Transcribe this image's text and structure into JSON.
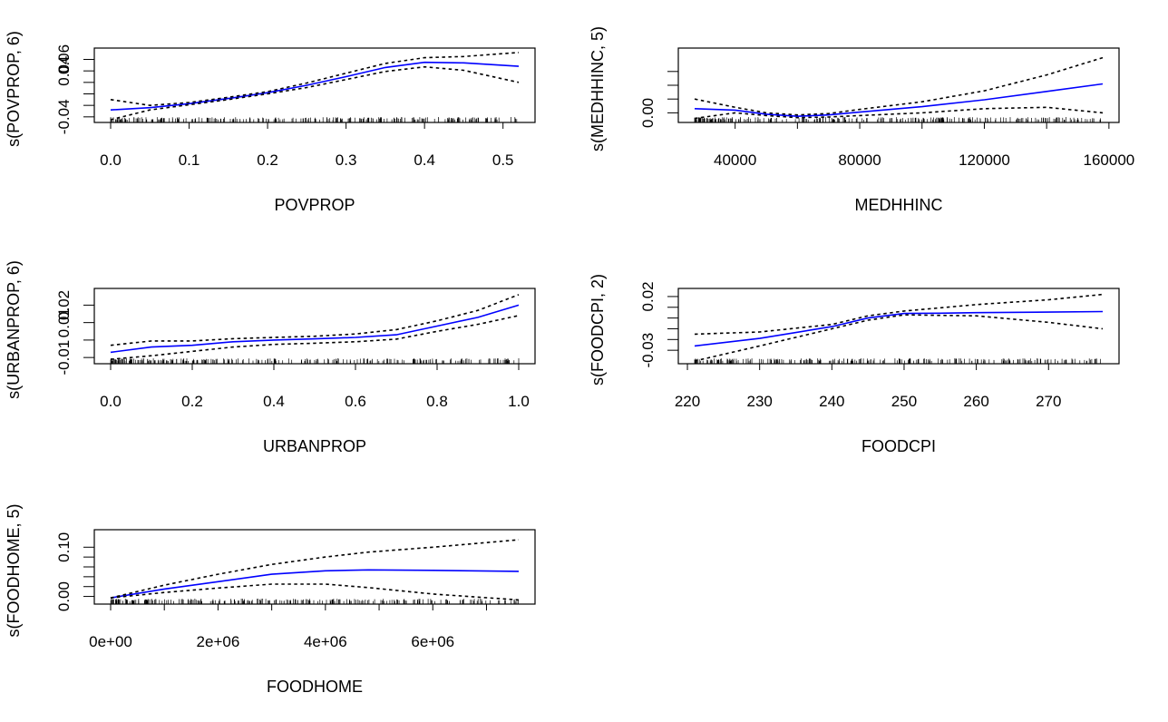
{
  "chart_data": [
    {
      "type": "line",
      "xlabel": "POVPROP",
      "ylabel": "s(POVPROP, 6)",
      "xlim": [
        0,
        0.52
      ],
      "ylim": [
        -0.045,
        0.075
      ],
      "x_ticks": [
        0.0,
        0.1,
        0.2,
        0.3,
        0.4,
        0.5
      ],
      "x_tick_labels": [
        "0.0",
        "0.1",
        "0.2",
        "0.3",
        "0.4",
        "0.5"
      ],
      "y_ticks": [
        -0.04,
        -0.02,
        0.0,
        0.02,
        0.04,
        0.06
      ],
      "y_tick_labels": [
        "-0.04",
        "",
        "",
        "",
        "0.04",
        "0.06"
      ],
      "rug": true,
      "series": [
        {
          "role": "fit",
          "color": "#0000ff",
          "dash": false,
          "x": [
            0,
            0.05,
            0.1,
            0.15,
            0.2,
            0.25,
            0.3,
            0.35,
            0.4,
            0.45,
            0.52
          ],
          "y": [
            -0.028,
            -0.024,
            -0.017,
            -0.008,
            0.002,
            0.015,
            0.03,
            0.046,
            0.055,
            0.054,
            0.048
          ]
        },
        {
          "role": "upper",
          "color": "#000000",
          "dash": true,
          "x": [
            0,
            0.05,
            0.1,
            0.15,
            0.2,
            0.25,
            0.3,
            0.35,
            0.4,
            0.45,
            0.52
          ],
          "y": [
            -0.01,
            -0.02,
            -0.015,
            -0.006,
            0.004,
            0.019,
            0.036,
            0.053,
            0.063,
            0.065,
            0.072
          ]
        },
        {
          "role": "lower",
          "color": "#000000",
          "dash": true,
          "x": [
            0,
            0.05,
            0.1,
            0.15,
            0.2,
            0.25,
            0.3,
            0.35,
            0.4,
            0.45,
            0.52
          ],
          "y": [
            -0.045,
            -0.028,
            -0.019,
            -0.01,
            0.0,
            0.011,
            0.025,
            0.039,
            0.047,
            0.041,
            0.02
          ]
        }
      ]
    },
    {
      "type": "line",
      "xlabel": "MEDHHINC",
      "ylabel": "s(MEDHHINC, 5)",
      "xlim": [
        27000,
        158000
      ],
      "ylim": [
        -0.01,
        0.09
      ],
      "x_ticks": [
        40000,
        60000,
        80000,
        100000,
        120000,
        140000,
        160000
      ],
      "x_tick_labels": [
        "40000",
        "",
        "80000",
        "",
        "120000",
        "",
        "160000"
      ],
      "y_ticks": [
        0.0,
        0.02,
        0.04,
        0.06
      ],
      "y_tick_labels": [
        "0.00",
        "",
        "",
        ""
      ],
      "rug": true,
      "series": [
        {
          "role": "fit",
          "color": "#0000ff",
          "dash": false,
          "x": [
            27000,
            40000,
            50000,
            60000,
            70000,
            80000,
            100000,
            120000,
            140000,
            158000
          ],
          "y": [
            0.006,
            0.004,
            -0.002,
            -0.005,
            -0.003,
            0.001,
            0.009,
            0.019,
            0.031,
            0.042
          ]
        },
        {
          "role": "upper",
          "color": "#000000",
          "dash": true,
          "x": [
            27000,
            40000,
            50000,
            60000,
            70000,
            80000,
            100000,
            120000,
            140000,
            158000
          ],
          "y": [
            0.02,
            0.008,
            0.0,
            -0.003,
            -0.001,
            0.005,
            0.016,
            0.032,
            0.055,
            0.08
          ]
        },
        {
          "role": "lower",
          "color": "#000000",
          "dash": true,
          "x": [
            27000,
            40000,
            50000,
            60000,
            70000,
            80000,
            100000,
            120000,
            140000,
            158000
          ],
          "y": [
            -0.008,
            0.0,
            -0.004,
            -0.007,
            -0.006,
            -0.004,
            0.0,
            0.006,
            0.008,
            0.0
          ]
        }
      ]
    },
    {
      "type": "line",
      "xlabel": "URBANPROP",
      "ylabel": "s(URBANPROP, 6)",
      "xlim": [
        0,
        1.0
      ],
      "ylim": [
        -0.012,
        0.028
      ],
      "x_ticks": [
        0.0,
        0.2,
        0.4,
        0.6,
        0.8,
        1.0
      ],
      "x_tick_labels": [
        "0.0",
        "0.2",
        "0.4",
        "0.6",
        "0.8",
        "1.0"
      ],
      "y_ticks": [
        -0.01,
        0.0,
        0.01,
        0.02
      ],
      "y_tick_labels": [
        "-0.01",
        "",
        "0.01",
        "0.02"
      ],
      "rug": true,
      "series": [
        {
          "role": "fit",
          "color": "#0000ff",
          "dash": false,
          "x": [
            0,
            0.1,
            0.2,
            0.3,
            0.4,
            0.5,
            0.6,
            0.7,
            0.8,
            0.9,
            1.0
          ],
          "y": [
            -0.007,
            -0.004,
            -0.003,
            -0.001,
            0.0,
            0.0007,
            0.0015,
            0.003,
            0.008,
            0.013,
            0.02
          ]
        },
        {
          "role": "upper",
          "color": "#000000",
          "dash": true,
          "x": [
            0,
            0.1,
            0.2,
            0.3,
            0.4,
            0.5,
            0.6,
            0.7,
            0.8,
            0.9,
            1.0
          ],
          "y": [
            -0.003,
            -0.0005,
            -0.0005,
            0.0008,
            0.0015,
            0.0022,
            0.0035,
            0.006,
            0.011,
            0.017,
            0.026
          ]
        },
        {
          "role": "lower",
          "color": "#000000",
          "dash": true,
          "x": [
            0,
            0.1,
            0.2,
            0.3,
            0.4,
            0.5,
            0.6,
            0.7,
            0.8,
            0.9,
            1.0
          ],
          "y": [
            -0.011,
            -0.009,
            -0.0065,
            -0.004,
            -0.0025,
            -0.0018,
            -0.001,
            0.0005,
            0.005,
            0.009,
            0.014
          ]
        }
      ]
    },
    {
      "type": "line",
      "xlabel": "FOODCPI",
      "ylabel": "s(FOODCPI, 2)",
      "xlim": [
        221,
        277.5
      ],
      "ylim": [
        -0.04,
        0.025
      ],
      "x_ticks": [
        220,
        230,
        240,
        250,
        260,
        270
      ],
      "x_tick_labels": [
        "220",
        "230",
        "240",
        "250",
        "260",
        "270"
      ],
      "y_ticks": [
        -0.03,
        -0.02,
        -0.01,
        0.0,
        0.01,
        0.02
      ],
      "y_tick_labels": [
        "-0.03",
        "",
        "",
        "",
        "",
        "0.02"
      ],
      "rug": true,
      "series": [
        {
          "role": "fit",
          "color": "#0000ff",
          "dash": false,
          "x": [
            221,
            230,
            240,
            245,
            250,
            255,
            260,
            270,
            277.5
          ],
          "y": [
            -0.026,
            -0.019,
            -0.008,
            0.0,
            0.0042,
            0.0045,
            0.005,
            0.0055,
            0.006
          ]
        },
        {
          "role": "upper",
          "color": "#000000",
          "dash": true,
          "x": [
            221,
            230,
            240,
            245,
            250,
            255,
            260,
            270,
            277.5
          ],
          "y": [
            -0.015,
            -0.013,
            -0.006,
            0.002,
            0.0065,
            0.0095,
            0.0125,
            0.017,
            0.022
          ]
        },
        {
          "role": "lower",
          "color": "#000000",
          "dash": true,
          "x": [
            221,
            230,
            240,
            245,
            250,
            255,
            260,
            270,
            277.5
          ],
          "y": [
            -0.04,
            -0.026,
            -0.01,
            -0.002,
            0.003,
            0.0025,
            0.002,
            -0.004,
            -0.01
          ]
        }
      ]
    },
    {
      "type": "line",
      "xlabel": "FOODHOME",
      "ylabel": "s(FOODHOME, 5)",
      "xlim": [
        0,
        7600000
      ],
      "ylim": [
        -0.01,
        0.13
      ],
      "x_ticks": [
        0,
        1000000,
        2000000,
        3000000,
        4000000,
        5000000,
        6000000,
        7000000
      ],
      "x_tick_labels": [
        "0e+00",
        "",
        "2e+06",
        "",
        "4e+06",
        "",
        "6e+06",
        ""
      ],
      "y_ticks": [
        0.0,
        0.02,
        0.04,
        0.06,
        0.08,
        0.1
      ],
      "y_tick_labels": [
        "0.00",
        "",
        "",
        "",
        "",
        "0.10"
      ],
      "rug": true,
      "series": [
        {
          "role": "fit",
          "color": "#0000ff",
          "dash": false,
          "x": [
            0,
            1000000,
            2000000,
            3000000,
            4000000,
            4800000,
            6000000,
            7600000
          ],
          "y": [
            -0.003,
            0.015,
            0.03,
            0.045,
            0.052,
            0.054,
            0.053,
            0.051
          ]
        },
        {
          "role": "upper",
          "color": "#000000",
          "dash": true,
          "x": [
            0,
            1000000,
            2000000,
            3000000,
            4000000,
            4800000,
            6000000,
            7600000
          ],
          "y": [
            -0.003,
            0.023,
            0.045,
            0.065,
            0.08,
            0.09,
            0.1,
            0.115
          ]
        },
        {
          "role": "lower",
          "color": "#000000",
          "dash": true,
          "x": [
            0,
            1000000,
            2000000,
            3000000,
            4000000,
            4800000,
            6000000,
            7600000
          ],
          "y": [
            -0.003,
            0.008,
            0.017,
            0.025,
            0.025,
            0.018,
            0.005,
            -0.007
          ]
        }
      ]
    }
  ]
}
